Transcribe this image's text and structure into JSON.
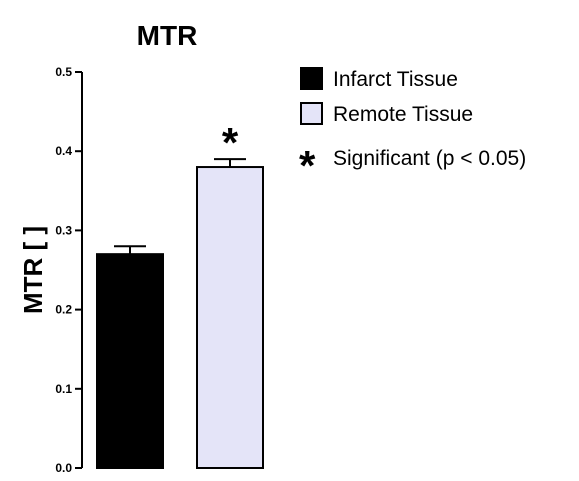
{
  "chart_data": {
    "type": "bar",
    "title": "MTR",
    "ylabel": "MTR [ ]",
    "xlabel": "",
    "ylim": [
      0,
      0.5
    ],
    "yticks": [
      "0.0",
      "0.1",
      "0.2",
      "0.3",
      "0.4",
      "0.5"
    ],
    "grid": false,
    "legend_position": "right",
    "series": [
      {
        "name": "Infarct Tissue",
        "value": 0.27,
        "error": 0.01,
        "color": "#000000",
        "significance_marker": ""
      },
      {
        "name": "Remote Tissue",
        "value": 0.38,
        "error": 0.01,
        "color": "#e4e4f8",
        "significance_marker": "*"
      }
    ],
    "significance_legend": {
      "symbol": "*",
      "label": "Significant (p < 0.05)"
    }
  }
}
